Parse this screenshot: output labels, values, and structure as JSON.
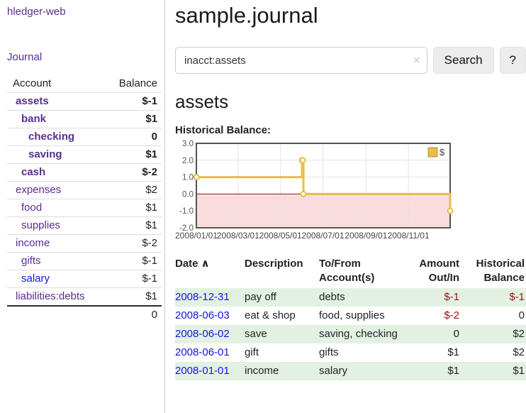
{
  "colors": {
    "accent_purple": "#5b2d91",
    "link_blue": "#1414e0",
    "negative": "#941414",
    "muted_negative": "#bf7b7b",
    "row_green": "#e3f1e3",
    "chart_gold": "#e8bd4a",
    "chart_pink": "#fbdcdc",
    "zero_line": "#8b1a1a",
    "chart_border": "#545454",
    "grid_line": "#e3e3e3"
  },
  "sidebar": {
    "brand": "hledger-web",
    "nav": {
      "journal": "Journal"
    },
    "accounts_table": {
      "headers": {
        "account": "Account",
        "balance": "Balance"
      },
      "rows": [
        {
          "name": "assets",
          "balance": "$-1",
          "level": 1,
          "bold": true,
          "balance_style": "negative",
          "name_style": "purple"
        },
        {
          "name": "bank",
          "balance": "$1",
          "level": 2,
          "bold": true,
          "balance_style": "normal",
          "name_style": "purple"
        },
        {
          "name": "checking",
          "balance": "0",
          "level": 3,
          "bold": true,
          "balance_style": "normal",
          "name_style": "purple"
        },
        {
          "name": "saving",
          "balance": "$1",
          "level": 3,
          "bold": true,
          "balance_style": "normal",
          "name_style": "purple"
        },
        {
          "name": "cash",
          "balance": "$-2",
          "level": 2,
          "bold": true,
          "balance_style": "negative",
          "name_style": "purple"
        },
        {
          "name": "expenses",
          "balance": "$2",
          "level": 1,
          "bold": false,
          "balance_style": "normal",
          "name_style": "purple"
        },
        {
          "name": "food",
          "balance": "$1",
          "level": 2,
          "bold": false,
          "balance_style": "normal",
          "name_style": "purple"
        },
        {
          "name": "supplies",
          "balance": "$1",
          "level": 2,
          "bold": false,
          "balance_style": "normal",
          "name_style": "purple"
        },
        {
          "name": "income",
          "balance": "$-2",
          "level": 1,
          "bold": false,
          "balance_style": "muted-negative",
          "name_style": "purple"
        },
        {
          "name": "gifts",
          "balance": "$-1",
          "level": 2,
          "bold": false,
          "balance_style": "muted-negative",
          "name_style": "purple"
        },
        {
          "name": "salary",
          "balance": "$-1",
          "level": 2,
          "bold": false,
          "balance_style": "muted-negative",
          "name_style": "blue"
        },
        {
          "name": "liabilities:debts",
          "balance": "$1",
          "level": 1,
          "bold": false,
          "balance_style": "normal",
          "name_style": "purple"
        }
      ],
      "total": "0"
    }
  },
  "header": {
    "title": "sample.journal"
  },
  "search": {
    "value": "inacct:assets",
    "clear_icon": "✕",
    "search_button": "Search",
    "help_button": "?"
  },
  "account_page": {
    "heading": "assets",
    "chart_title": "Historical Balance:"
  },
  "chart_data": {
    "type": "line",
    "step": true,
    "series": [
      {
        "name": "$",
        "color": "#e8bd4a",
        "points": [
          [
            "2008-01-01",
            1
          ],
          [
            "2008-06-01",
            2
          ],
          [
            "2008-06-02",
            2
          ],
          [
            "2008-06-03",
            0
          ],
          [
            "2008-12-31",
            -1
          ]
        ]
      }
    ],
    "xlim": [
      "2008-01-01",
      "2008-12-31"
    ],
    "ylim": [
      -2,
      3
    ],
    "x_ticks": [
      {
        "date": "2008-01-01",
        "label": "2008/01/01"
      },
      {
        "date": "2008-03-01",
        "label": "2008/03/01"
      },
      {
        "date": "2008-05-01",
        "label": "2008/05/01"
      },
      {
        "date": "2008-07-01",
        "label": "2008/07/01"
      },
      {
        "date": "2008-09-01",
        "label": "2008/09/01"
      },
      {
        "date": "2008-11-01",
        "label": "2008/11/01"
      }
    ],
    "y_ticks": [
      {
        "value": 3,
        "label": "3.0"
      },
      {
        "value": 2,
        "label": "2.0"
      },
      {
        "value": 1,
        "label": "1.0"
      },
      {
        "value": 0,
        "label": "0.0"
      },
      {
        "value": -1,
        "label": "-1.0"
      },
      {
        "value": -2,
        "label": "-2.0"
      }
    ],
    "legend": {
      "label": "$",
      "position": "top-right"
    },
    "grid": true,
    "negative_region_shaded": true
  },
  "register": {
    "sort_arrow": "∧",
    "headers": [
      "Date",
      "Description",
      "To/From Account(s)",
      "Amount Out/In",
      "Historical Balance"
    ],
    "rows": [
      {
        "date": "2008-12-31",
        "description": "pay off",
        "accounts": "debts",
        "amount": "$-1",
        "amount_neg": true,
        "balance": "$-1",
        "balance_neg": true
      },
      {
        "date": "2008-06-03",
        "description": "eat & shop",
        "accounts": "food, supplies",
        "amount": "$-2",
        "amount_neg": true,
        "balance": "0",
        "balance_neg": false
      },
      {
        "date": "2008-06-02",
        "description": "save",
        "accounts": "saving, checking",
        "amount": "0",
        "amount_neg": false,
        "balance": "$2",
        "balance_neg": false
      },
      {
        "date": "2008-06-01",
        "description": "gift",
        "accounts": "gifts",
        "amount": "$1",
        "amount_neg": false,
        "balance": "$2",
        "balance_neg": false
      },
      {
        "date": "2008-01-01",
        "description": "income",
        "accounts": "salary",
        "amount": "$1",
        "amount_neg": false,
        "balance": "$1",
        "balance_neg": false
      }
    ]
  }
}
